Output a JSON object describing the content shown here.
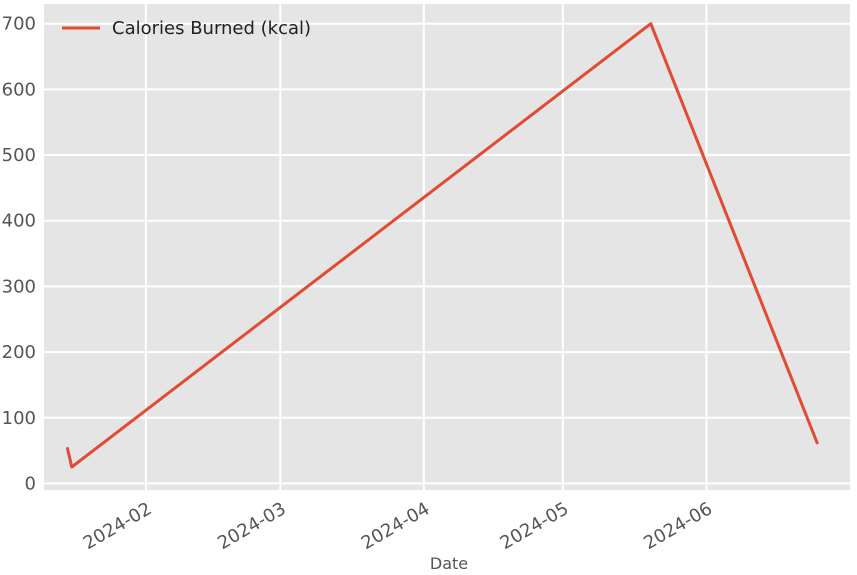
{
  "chart_data": {
    "type": "line",
    "title": "",
    "xlabel": "Date",
    "ylabel": "",
    "x_axis_type": "date",
    "xlim": [
      "2024-01-10",
      "2024-07-02"
    ],
    "ylim": [
      -10,
      730
    ],
    "x_ticks": [
      {
        "value": "2024-02-01",
        "label": "2024-02"
      },
      {
        "value": "2024-03-01",
        "label": "2024-03"
      },
      {
        "value": "2024-04-01",
        "label": "2024-04"
      },
      {
        "value": "2024-05-01",
        "label": "2024-05"
      },
      {
        "value": "2024-06-01",
        "label": "2024-06"
      }
    ],
    "y_ticks": [
      0,
      100,
      200,
      300,
      400,
      500,
      600,
      700
    ],
    "grid": true,
    "legend_position": "top-left",
    "series": [
      {
        "name": "Calories Burned (kcal)",
        "color": "#E24A33",
        "x": [
          "2024-01-15",
          "2024-01-16",
          "2024-05-20",
          "2024-06-25"
        ],
        "y": [
          55,
          25,
          700,
          60
        ]
      }
    ]
  }
}
